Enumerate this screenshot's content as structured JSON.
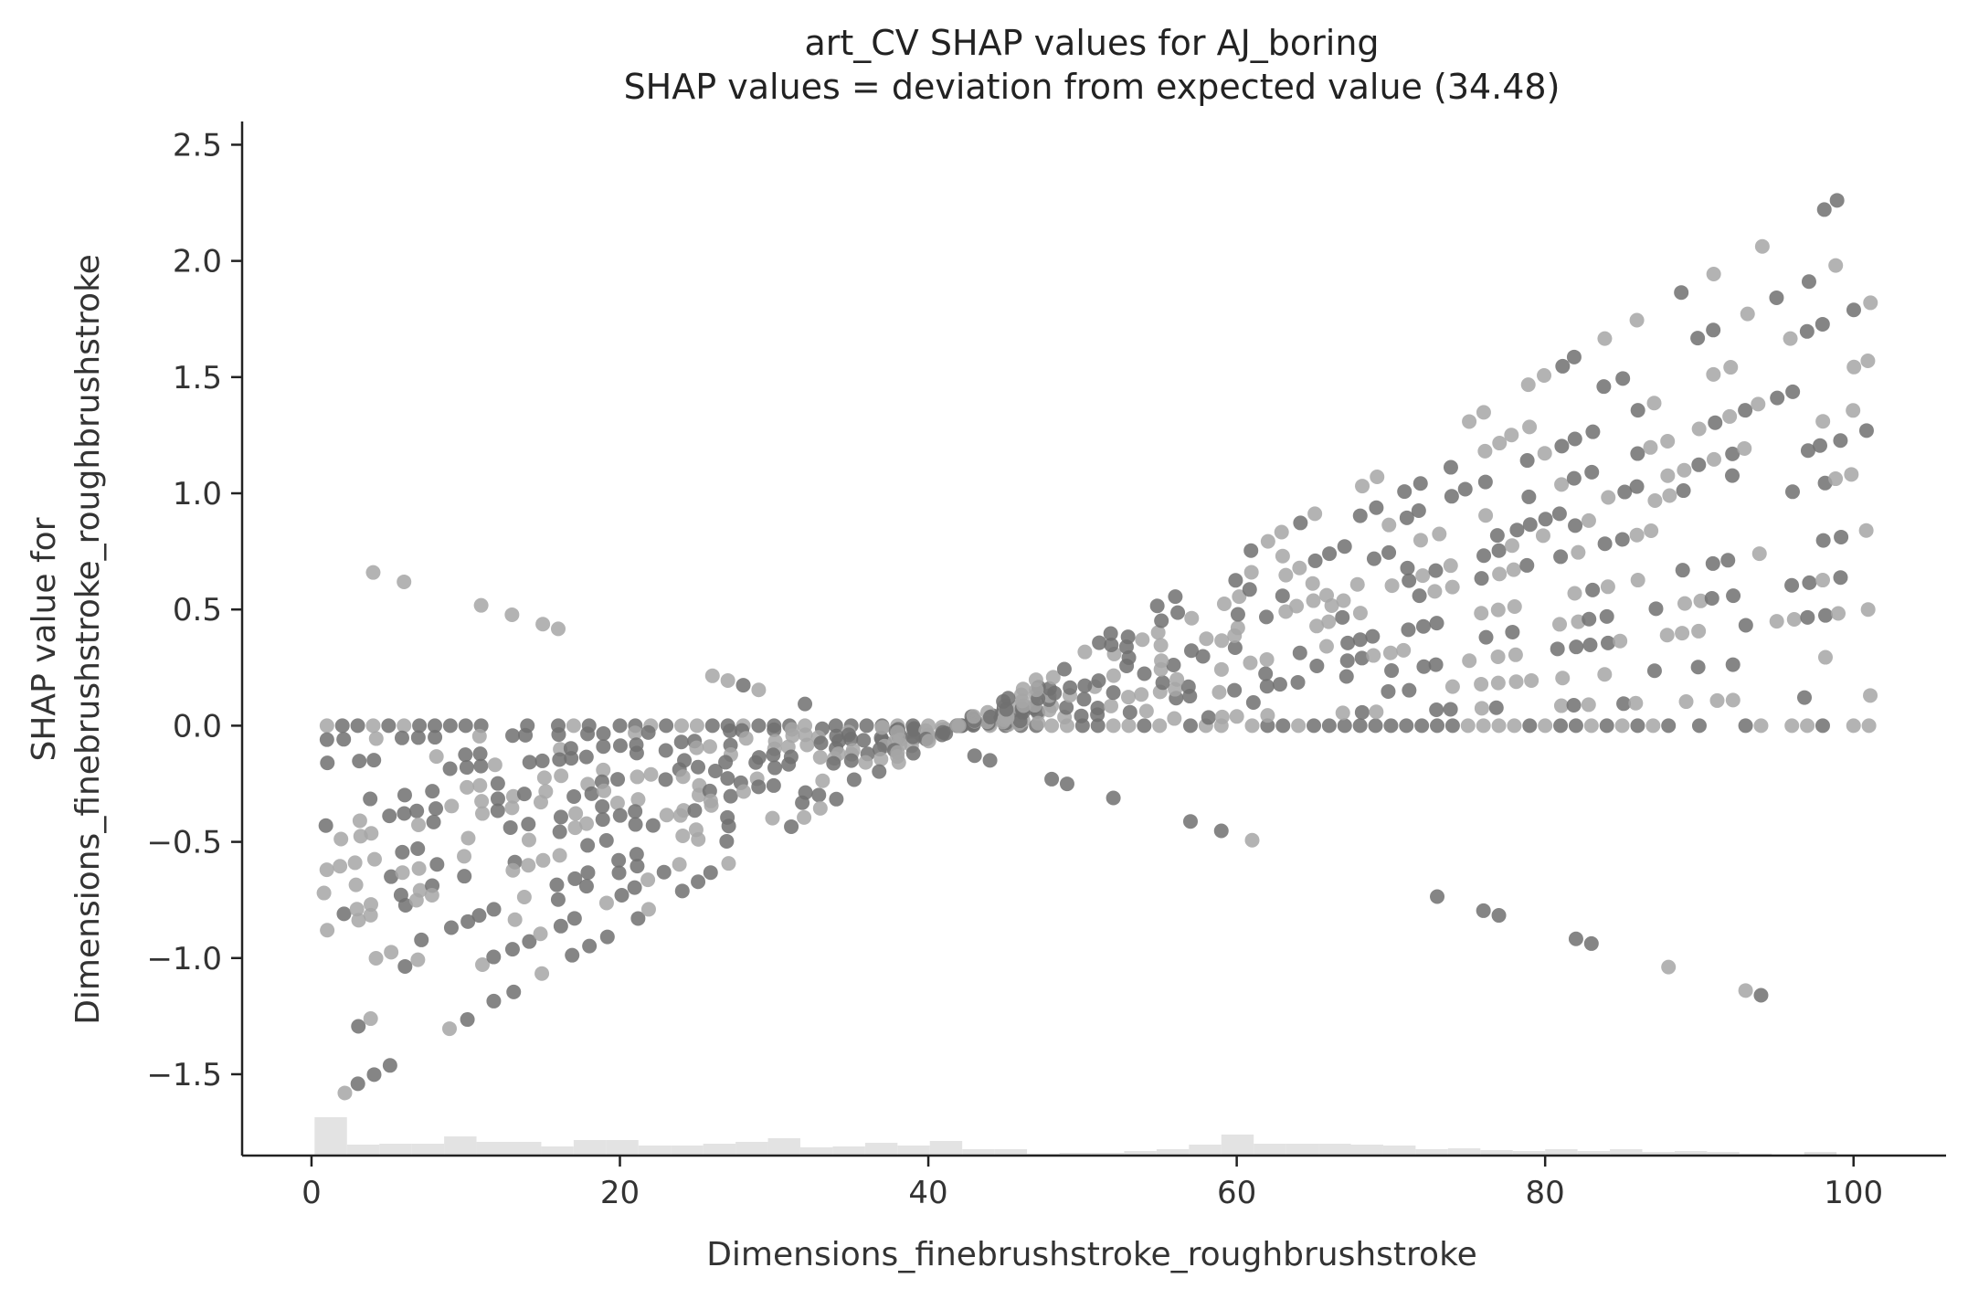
{
  "chart_data": {
    "type": "scatter",
    "title_line1": "art_CV SHAP values for AJ_boring",
    "title_line2": "SHAP values = deviation from expected value (34.48)",
    "xlabel": "Dimensions_finebrushstroke_roughbrushstroke",
    "ylabel_line1": "SHAP value for",
    "ylabel_line2": "Dimensions_finebrushstroke_roughbrushstroke",
    "xlim": [
      -4.5,
      106
    ],
    "ylim": [
      -1.85,
      2.6
    ],
    "x_ticks": [
      0,
      20,
      40,
      60,
      80,
      100
    ],
    "x_tick_labels": [
      "0",
      "20",
      "40",
      "60",
      "80",
      "100"
    ],
    "y_ticks": [
      -1.5,
      -1.0,
      -0.5,
      0.0,
      0.5,
      1.0,
      1.5,
      2.0,
      2.5
    ],
    "y_tick_labels": [
      "−1.5",
      "−1.0",
      "−0.5",
      "0.0",
      "0.5",
      "1.0",
      "1.5",
      "2.0",
      "2.5"
    ],
    "grid": false,
    "colors": {
      "point_dark": "#707070",
      "point_light": "#a6a6a6",
      "histogram": "#e3e3e3",
      "axis": "#222222"
    },
    "histogram": {
      "bin_width": 2.1,
      "x_start": 0.2,
      "counts": [
        42,
        12,
        13,
        13,
        21,
        15,
        15,
        10,
        17,
        17,
        11,
        11,
        13,
        15,
        19,
        9,
        10,
        14,
        11,
        16,
        7,
        7,
        2,
        3,
        3,
        5,
        7,
        12,
        23,
        13,
        13,
        13,
        12,
        11,
        7,
        8,
        6,
        5,
        7,
        5,
        7,
        4,
        5,
        4,
        2,
        0,
        4
      ]
    },
    "note_points": "points generated from estimated families read off the plot",
    "families": {
      "zero_line": {
        "x_from": 1,
        "x_to": 101,
        "y": 0.0
      },
      "fans_from_left": {
        "x_from": 1,
        "x_to": 47,
        "start_values": [
          -0.06,
          -0.16,
          -0.23,
          -0.34,
          -0.43,
          -0.5,
          -0.62,
          -0.72,
          -0.83,
          -0.88,
          -1.08,
          -1.18,
          -1.36,
          -1.62
        ]
      },
      "fans_to_right": {
        "x_from": 42,
        "x_to": 101,
        "end_values": [
          0.13,
          0.31,
          0.5,
          0.66,
          0.84,
          1.1,
          1.27,
          1.38,
          1.57,
          1.82,
          2.05,
          2.34
        ]
      },
      "descending_line": {
        "x_from": 1,
        "x_to": 94,
        "y_start": 0.72,
        "y_end": -1.16
      }
    }
  }
}
